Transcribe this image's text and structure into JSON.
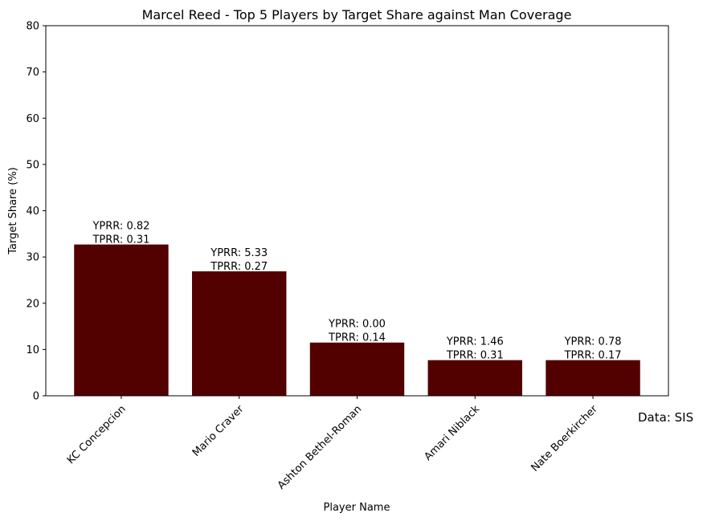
{
  "source_note": "Data: SIS",
  "chart_data": {
    "type": "bar",
    "title": "Marcel Reed - Top 5 Players by Target Share against Man Coverage",
    "xlabel": "Player Name",
    "ylabel": "Target Share (%)",
    "ylim": [
      0,
      80
    ],
    "yticks": [
      0,
      10,
      20,
      30,
      40,
      50,
      60,
      70,
      80
    ],
    "grid": false,
    "categories": [
      "KC Concepcion",
      "Mario Craver",
      "Ashton Bethel-Roman",
      "Amari Niblack",
      "Nate Boerkircher"
    ],
    "values": [
      32.7,
      26.9,
      11.5,
      7.7,
      7.7
    ],
    "annotations": [
      [
        "YPRR: 0.82",
        "TPRR: 0.31"
      ],
      [
        "YPRR: 5.33",
        "TPRR: 0.27"
      ],
      [
        "YPRR: 0.00",
        "TPRR: 0.14"
      ],
      [
        "YPRR: 1.46",
        "TPRR: 0.31"
      ],
      [
        "YPRR: 0.78",
        "TPRR: 0.17"
      ]
    ],
    "bar_color": "#520000"
  }
}
